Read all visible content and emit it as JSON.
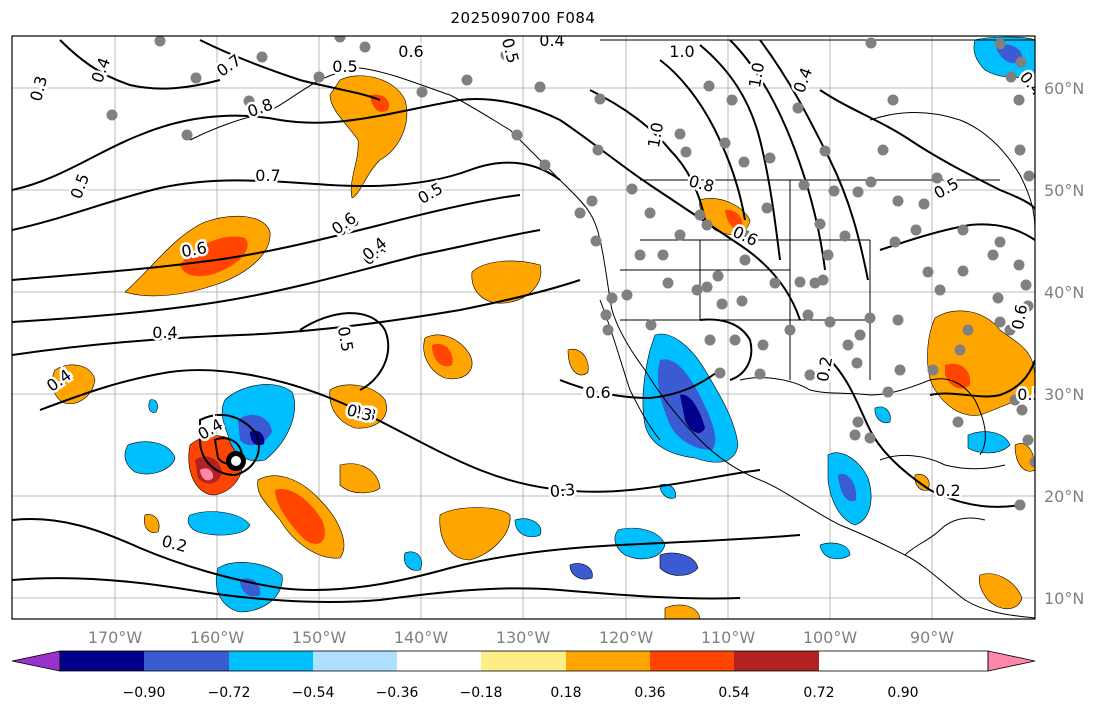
{
  "title": "2025090700 F084",
  "map": {
    "lon_ticks": [
      "170°W",
      "160°W",
      "150°W",
      "140°W",
      "130°W",
      "120°W",
      "110°W",
      "100°W",
      "90°W"
    ],
    "lat_ticks": [
      "60°N",
      "50°N",
      "40°N",
      "30°N",
      "20°N",
      "10°N"
    ],
    "contour_labels": [
      {
        "text": "0.3"
      },
      {
        "text": "0.4"
      },
      {
        "text": "0.7"
      },
      {
        "text": "0.8"
      },
      {
        "text": "0.5"
      },
      {
        "text": "0.6"
      },
      {
        "text": "0.5"
      },
      {
        "text": "0.4"
      },
      {
        "text": "0.4"
      },
      {
        "text": "0.4"
      },
      {
        "text": "0.5"
      },
      {
        "text": "0.6"
      },
      {
        "text": "0.6"
      },
      {
        "text": "0.5"
      },
      {
        "text": "0.4"
      },
      {
        "text": "0.4"
      },
      {
        "text": "0.7"
      },
      {
        "text": "0.6"
      },
      {
        "text": "0.5"
      },
      {
        "text": "0.4"
      },
      {
        "text": "0.3"
      },
      {
        "text": "0.2"
      },
      {
        "text": "0.3"
      },
      {
        "text": "0.6"
      },
      {
        "text": "1.0"
      },
      {
        "text": "1.0"
      },
      {
        "text": "1.0"
      },
      {
        "text": "0.4"
      },
      {
        "text": "0.8"
      },
      {
        "text": "0.6"
      },
      {
        "text": "0.6"
      },
      {
        "text": "0.5"
      },
      {
        "text": "0.3"
      },
      {
        "text": "0.2"
      },
      {
        "text": "0.2"
      },
      {
        "text": "0.4"
      },
      {
        "text": "0.6"
      },
      {
        "text": "0.5"
      }
    ],
    "colors": {
      "ocean": "#ffffff",
      "grid": "#a9a9a9",
      "contour": "#000000",
      "station_dots": "#808080"
    }
  },
  "colorbar": {
    "ticks": [
      "−0.90",
      "−0.72",
      "−0.54",
      "−0.36",
      "−0.18",
      "0.18",
      "0.36",
      "0.54",
      "0.72",
      "0.90"
    ],
    "colors": [
      "#9932cc",
      "#00008b",
      "#3a5bd1",
      "#00bfff",
      "#b0e0ff",
      "#ffffff",
      "#ffee88",
      "#ffa500",
      "#ff4500",
      "#b22222",
      "#ff88aa"
    ]
  }
}
